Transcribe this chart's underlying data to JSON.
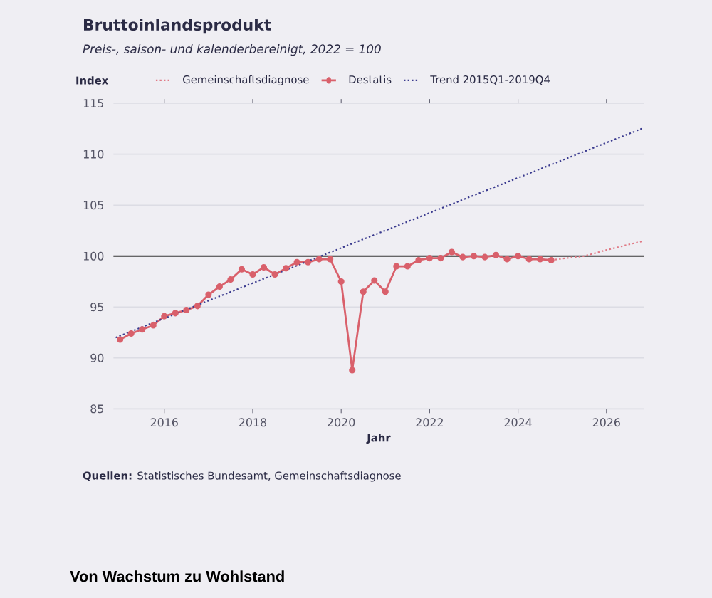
{
  "chart_data": {
    "type": "line",
    "title": "Bruttoinlandsprodukt",
    "subtitle": "Preis-, saison- und kalenderbereinigt, 2022 = 100",
    "ylabel": "Index",
    "xlabel": "Jahr",
    "annotations": [
      "**Quellen:** Statistisches Bundesamt, Gemeinschaftsdiagnose",
      "Von Wachstum zu Wohlstand"
    ],
    "xlim": [
      2014.85,
      2026.85
    ],
    "xticks": [
      2016,
      2018,
      2020,
      2022,
      2024,
      2026
    ],
    "ylim": [
      85,
      115
    ],
    "yticks": [
      85,
      90,
      95,
      100,
      105,
      110,
      115
    ],
    "grid": "y",
    "legend": "top",
    "ref_lines": [
      {
        "axis": "y",
        "value": 100,
        "color": "#3a3a3a"
      }
    ],
    "series": [
      {
        "name": "Gemeinschaftsdiagnose",
        "color": "#e07a86",
        "line_style": "dotted",
        "marker": "none",
        "x": [
          2024.75,
          2025.0,
          2025.5,
          2026.0,
          2026.85
        ],
        "values": [
          99.6,
          99.75,
          100.0,
          100.6,
          101.5
        ]
      },
      {
        "name": "Destatis",
        "color": "#d9606b",
        "line_style": "solid",
        "marker": "circle",
        "x": [
          2015.0,
          2015.25,
          2015.5,
          2015.75,
          2016.0,
          2016.25,
          2016.5,
          2016.75,
          2017.0,
          2017.25,
          2017.5,
          2017.75,
          2018.0,
          2018.25,
          2018.5,
          2018.75,
          2019.0,
          2019.25,
          2019.5,
          2019.75,
          2020.0,
          2020.25,
          2020.5,
          2020.75,
          2021.0,
          2021.25,
          2021.5,
          2021.75,
          2022.0,
          2022.25,
          2022.5,
          2022.75,
          2023.0,
          2023.25,
          2023.5,
          2023.75,
          2024.0,
          2024.25,
          2024.5,
          2024.75
        ],
        "values": [
          91.8,
          92.4,
          92.8,
          93.2,
          94.1,
          94.4,
          94.7,
          95.1,
          96.2,
          97.0,
          97.7,
          98.7,
          98.2,
          98.9,
          98.2,
          98.8,
          99.4,
          99.4,
          99.7,
          99.7,
          97.5,
          88.8,
          96.5,
          97.6,
          96.5,
          99.0,
          99.0,
          99.6,
          99.8,
          99.8,
          100.4,
          99.9,
          100.0,
          99.9,
          100.1,
          99.7,
          100.0,
          99.7,
          99.7,
          99.6
        ]
      },
      {
        "name": "Trend 2015Q1-2019Q4",
        "color": "#3b3b8f",
        "line_style": "dotted",
        "marker": "none",
        "x": [
          2014.9,
          2026.85
        ],
        "values": [
          92.0,
          112.6
        ]
      }
    ]
  }
}
